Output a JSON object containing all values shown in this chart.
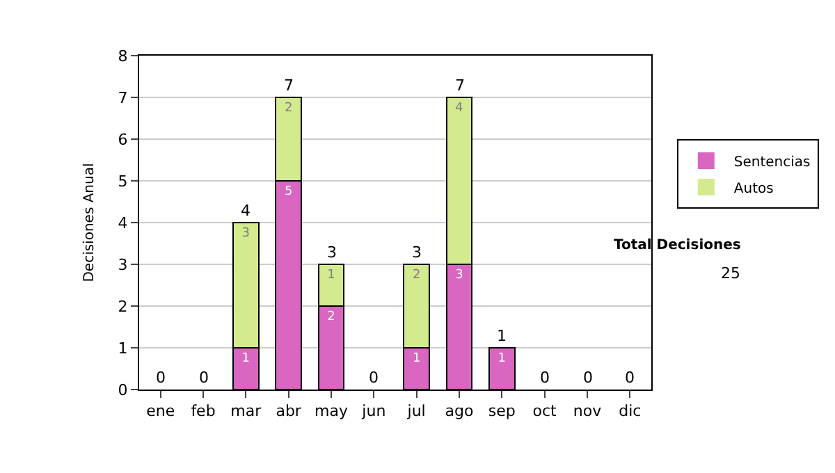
{
  "chart_data": {
    "type": "bar",
    "stacked": true,
    "ylabel": "Decisiones Anual",
    "categories": [
      "ene",
      "feb",
      "mar",
      "abr",
      "may",
      "jun",
      "jul",
      "ago",
      "sep",
      "oct",
      "nov",
      "dic"
    ],
    "series": [
      {
        "name": "Sentencias",
        "color": "#d966c0",
        "values": [
          0,
          0,
          1,
          5,
          2,
          0,
          1,
          3,
          1,
          0,
          0,
          0
        ],
        "value_labels": [
          null,
          null,
          "1",
          "5",
          "2",
          null,
          "1",
          "3",
          "1",
          null,
          null,
          null
        ]
      },
      {
        "name": "Autos",
        "color": "#d4ea8f",
        "values": [
          0,
          0,
          3,
          2,
          1,
          0,
          2,
          4,
          0,
          0,
          0,
          0
        ],
        "value_labels": [
          null,
          null,
          "3",
          "2",
          "1",
          null,
          "2",
          "4",
          null,
          null,
          null,
          null
        ]
      }
    ],
    "totals": [
      "0",
      "0",
      "4",
      "7",
      "3",
      "0",
      "3",
      "7",
      "1",
      "0",
      "0",
      "0"
    ],
    "ylim": [
      0,
      8
    ],
    "yticks": [
      0,
      1,
      2,
      3,
      4,
      5,
      6,
      7,
      8
    ],
    "grid": "y",
    "legend": "right",
    "annotations": [
      "Total Decisiones",
      "25"
    ]
  }
}
